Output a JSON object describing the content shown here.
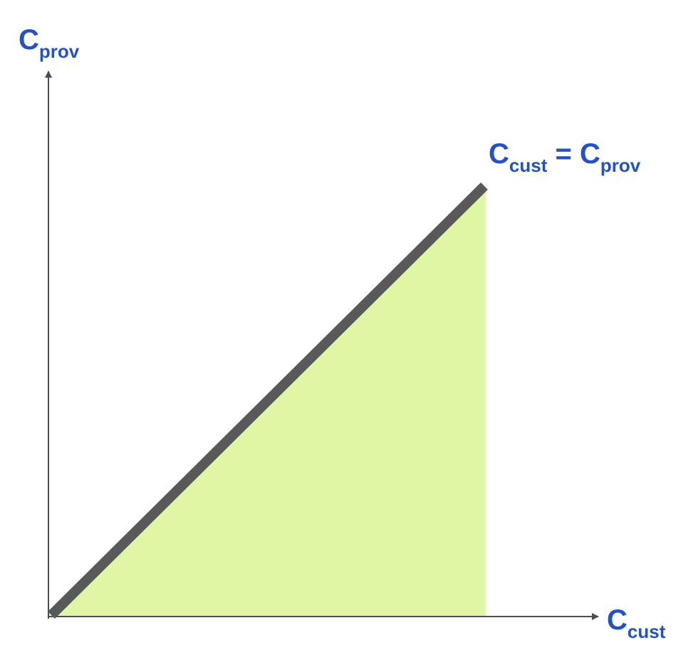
{
  "colors": {
    "label": "#2451c7",
    "axis": "#4d4d4d",
    "line": "#595959",
    "fill": "#dff7a4"
  },
  "labels": {
    "y_axis": {
      "main": "C",
      "sub": "prov"
    },
    "x_axis": {
      "main": "C",
      "sub": "cust"
    },
    "line": {
      "left_main": "C",
      "left_sub": "cust",
      "equals": " = ",
      "right_main": "C",
      "right_sub": "prov"
    }
  }
}
